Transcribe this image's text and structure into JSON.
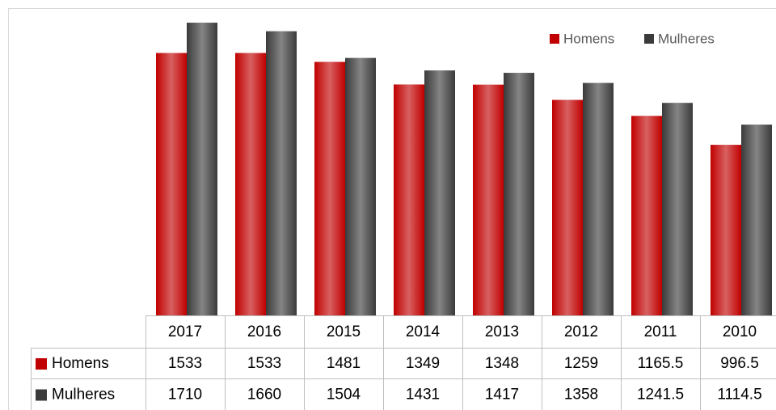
{
  "chart_data": {
    "type": "bar",
    "categories": [
      "2017",
      "2016",
      "2015",
      "2014",
      "2013",
      "2012",
      "2011",
      "2010"
    ],
    "series": [
      {
        "name": "Homens",
        "color": "#c00000",
        "values": [
          1533,
          1533,
          1481,
          1349,
          1348,
          1259,
          1165.5,
          996.5
        ]
      },
      {
        "name": "Mulheres",
        "color": "#3a3a3a",
        "values": [
          1710,
          1660,
          1504,
          1431,
          1417,
          1358,
          1241.5,
          1114.5
        ]
      }
    ],
    "ylim": [
      0,
      1800
    ],
    "legend": "top-right"
  }
}
